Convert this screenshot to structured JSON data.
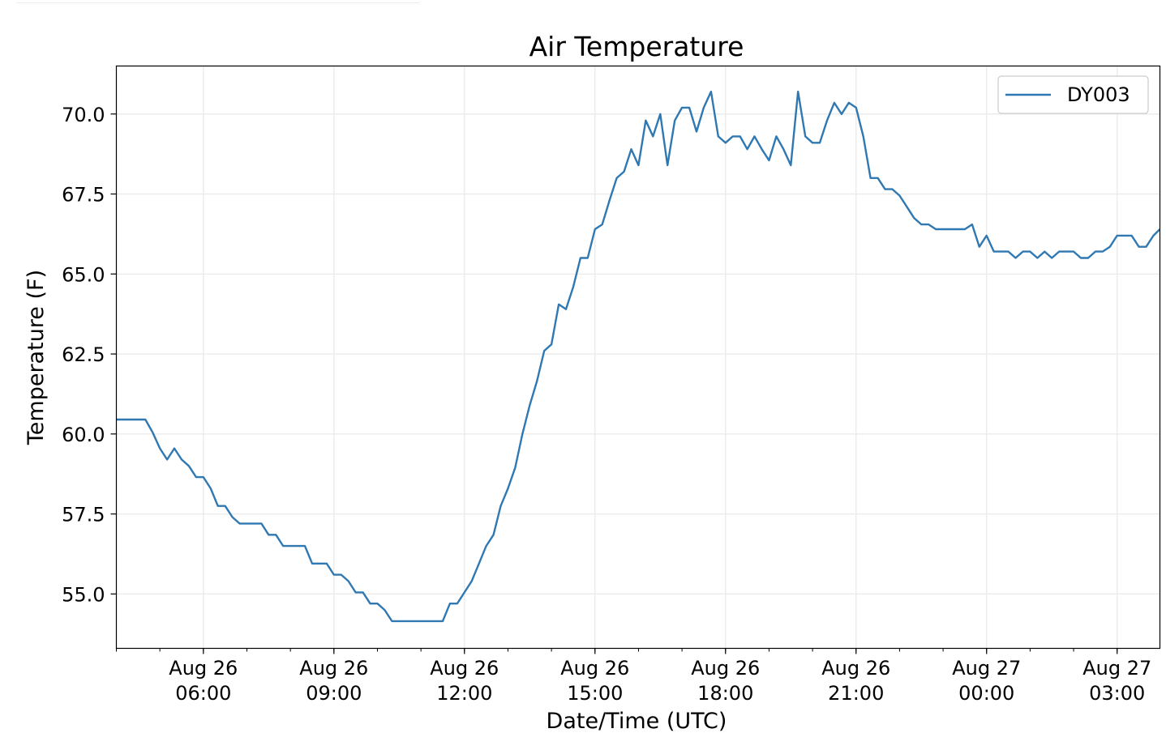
{
  "chart_data": {
    "type": "line",
    "title": "Air Temperature",
    "xlabel": "Date/Time (UTC)",
    "ylabel": "Temperature (F)",
    "ylim": [
      53.3,
      71.5
    ],
    "xlim": [
      "2023-08-26 04:00",
      "2023-08-27 03:59"
    ],
    "grid": true,
    "legend_position": "top-right",
    "y_ticks": [
      "55.0",
      "57.5",
      "60.0",
      "62.5",
      "65.0",
      "67.5",
      "70.0"
    ],
    "x_ticks": [
      {
        "t": "2023-08-26 06:00",
        "label_top": "Aug 26",
        "label_bottom": "06:00"
      },
      {
        "t": "2023-08-26 09:00",
        "label_top": "Aug 26",
        "label_bottom": "09:00"
      },
      {
        "t": "2023-08-26 12:00",
        "label_top": "Aug 26",
        "label_bottom": "12:00"
      },
      {
        "t": "2023-08-26 15:00",
        "label_top": "Aug 26",
        "label_bottom": "15:00"
      },
      {
        "t": "2023-08-26 18:00",
        "label_top": "Aug 26",
        "label_bottom": "18:00"
      },
      {
        "t": "2023-08-26 21:00",
        "label_top": "Aug 26",
        "label_bottom": "21:00"
      },
      {
        "t": "2023-08-27 00:00",
        "label_top": "Aug 27",
        "label_bottom": "00:00"
      },
      {
        "t": "2023-08-27 03:00",
        "label_top": "Aug 27",
        "label_bottom": "03:00"
      }
    ],
    "series": [
      {
        "name": "DY003",
        "color": "#2f78b2",
        "x": [
          "2023-08-26 04:00",
          "2023-08-26 04:10",
          "2023-08-26 04:20",
          "2023-08-26 04:30",
          "2023-08-26 04:40",
          "2023-08-26 04:50",
          "2023-08-26 05:00",
          "2023-08-26 05:10",
          "2023-08-26 05:20",
          "2023-08-26 05:30",
          "2023-08-26 05:40",
          "2023-08-26 05:50",
          "2023-08-26 06:00",
          "2023-08-26 06:10",
          "2023-08-26 06:20",
          "2023-08-26 06:30",
          "2023-08-26 06:40",
          "2023-08-26 06:50",
          "2023-08-26 07:00",
          "2023-08-26 07:10",
          "2023-08-26 07:20",
          "2023-08-26 07:30",
          "2023-08-26 07:40",
          "2023-08-26 07:50",
          "2023-08-26 08:00",
          "2023-08-26 08:10",
          "2023-08-26 08:20",
          "2023-08-26 08:30",
          "2023-08-26 08:40",
          "2023-08-26 08:50",
          "2023-08-26 09:00",
          "2023-08-26 09:10",
          "2023-08-26 09:20",
          "2023-08-26 09:30",
          "2023-08-26 09:40",
          "2023-08-26 09:50",
          "2023-08-26 10:00",
          "2023-08-26 10:10",
          "2023-08-26 10:20",
          "2023-08-26 10:30",
          "2023-08-26 10:40",
          "2023-08-26 10:50",
          "2023-08-26 11:00",
          "2023-08-26 11:10",
          "2023-08-26 11:20",
          "2023-08-26 11:30",
          "2023-08-26 11:40",
          "2023-08-26 11:50",
          "2023-08-26 12:00",
          "2023-08-26 12:10",
          "2023-08-26 12:20",
          "2023-08-26 12:30",
          "2023-08-26 12:40",
          "2023-08-26 12:50",
          "2023-08-26 13:00",
          "2023-08-26 13:10",
          "2023-08-26 13:20",
          "2023-08-26 13:30",
          "2023-08-26 13:40",
          "2023-08-26 13:50",
          "2023-08-26 14:00",
          "2023-08-26 14:10",
          "2023-08-26 14:20",
          "2023-08-26 14:30",
          "2023-08-26 14:40",
          "2023-08-26 14:50",
          "2023-08-26 15:00",
          "2023-08-26 15:10",
          "2023-08-26 15:20",
          "2023-08-26 15:30",
          "2023-08-26 15:40",
          "2023-08-26 15:50",
          "2023-08-26 16:00",
          "2023-08-26 16:10",
          "2023-08-26 16:20",
          "2023-08-26 16:30",
          "2023-08-26 16:40",
          "2023-08-26 16:50",
          "2023-08-26 17:00",
          "2023-08-26 17:10",
          "2023-08-26 17:20",
          "2023-08-26 17:30",
          "2023-08-26 17:40",
          "2023-08-26 17:50",
          "2023-08-26 18:00",
          "2023-08-26 18:10",
          "2023-08-26 18:20",
          "2023-08-26 18:30",
          "2023-08-26 18:40",
          "2023-08-26 18:50",
          "2023-08-26 19:00",
          "2023-08-26 19:10",
          "2023-08-26 19:20",
          "2023-08-26 19:30",
          "2023-08-26 19:40",
          "2023-08-26 19:50",
          "2023-08-26 20:00",
          "2023-08-26 20:10",
          "2023-08-26 20:20",
          "2023-08-26 20:30",
          "2023-08-26 20:40",
          "2023-08-26 20:50",
          "2023-08-26 21:00",
          "2023-08-26 21:10",
          "2023-08-26 21:20",
          "2023-08-26 21:30",
          "2023-08-26 21:40",
          "2023-08-26 21:50",
          "2023-08-26 22:00",
          "2023-08-26 22:10",
          "2023-08-26 22:20",
          "2023-08-26 22:30",
          "2023-08-26 22:40",
          "2023-08-26 22:50",
          "2023-08-26 23:00",
          "2023-08-26 23:10",
          "2023-08-26 23:20",
          "2023-08-26 23:30",
          "2023-08-26 23:40",
          "2023-08-26 23:50",
          "2023-08-27 00:00",
          "2023-08-27 00:10",
          "2023-08-27 00:20",
          "2023-08-27 00:30",
          "2023-08-27 00:40",
          "2023-08-27 00:50",
          "2023-08-27 01:00",
          "2023-08-27 01:10",
          "2023-08-27 01:20",
          "2023-08-27 01:30",
          "2023-08-27 01:40",
          "2023-08-27 01:50",
          "2023-08-27 02:00",
          "2023-08-27 02:10",
          "2023-08-27 02:20",
          "2023-08-27 02:30",
          "2023-08-27 02:40",
          "2023-08-27 02:50",
          "2023-08-27 03:00",
          "2023-08-27 03:10",
          "2023-08-27 03:20",
          "2023-08-27 03:30",
          "2023-08-27 03:40",
          "2023-08-27 03:50",
          "2023-08-27 03:59"
        ],
        "y": [
          60.45,
          60.45,
          60.45,
          60.45,
          60.45,
          60.05,
          59.55,
          59.2,
          59.55,
          59.2,
          59.0,
          58.65,
          58.65,
          58.3,
          57.75,
          57.75,
          57.4,
          57.2,
          57.2,
          57.2,
          57.2,
          56.85,
          56.85,
          56.5,
          56.5,
          56.5,
          56.5,
          55.95,
          55.95,
          55.95,
          55.6,
          55.6,
          55.4,
          55.05,
          55.05,
          54.7,
          54.7,
          54.5,
          54.15,
          54.15,
          54.15,
          54.15,
          54.15,
          54.15,
          54.15,
          54.15,
          54.7,
          54.7,
          55.05,
          55.4,
          55.95,
          56.5,
          56.85,
          57.75,
          58.3,
          58.95,
          60.0,
          60.9,
          61.65,
          62.6,
          62.8,
          64.05,
          63.9,
          64.6,
          65.5,
          65.5,
          66.4,
          66.55,
          67.3,
          68.0,
          68.2,
          68.9,
          68.4,
          69.8,
          69.3,
          70.0,
          68.4,
          69.8,
          70.2,
          70.2,
          69.45,
          70.2,
          70.7,
          69.3,
          69.1,
          69.3,
          69.3,
          68.9,
          69.3,
          68.9,
          68.55,
          69.3,
          68.9,
          68.4,
          70.7,
          69.3,
          69.1,
          69.1,
          69.8,
          70.35,
          70.0,
          70.35,
          70.2,
          69.3,
          68.0,
          68.0,
          67.65,
          67.65,
          67.45,
          67.1,
          66.75,
          66.55,
          66.55,
          66.4,
          66.4,
          66.4,
          66.4,
          66.4,
          66.55,
          65.85,
          66.2,
          65.7,
          65.7,
          65.7,
          65.5,
          65.7,
          65.7,
          65.5,
          65.7,
          65.5,
          65.7,
          65.7,
          65.7,
          65.5,
          65.5,
          65.7,
          65.7,
          65.85,
          66.2,
          66.2,
          66.2,
          65.85,
          65.85,
          66.2,
          66.4
        ]
      }
    ]
  }
}
